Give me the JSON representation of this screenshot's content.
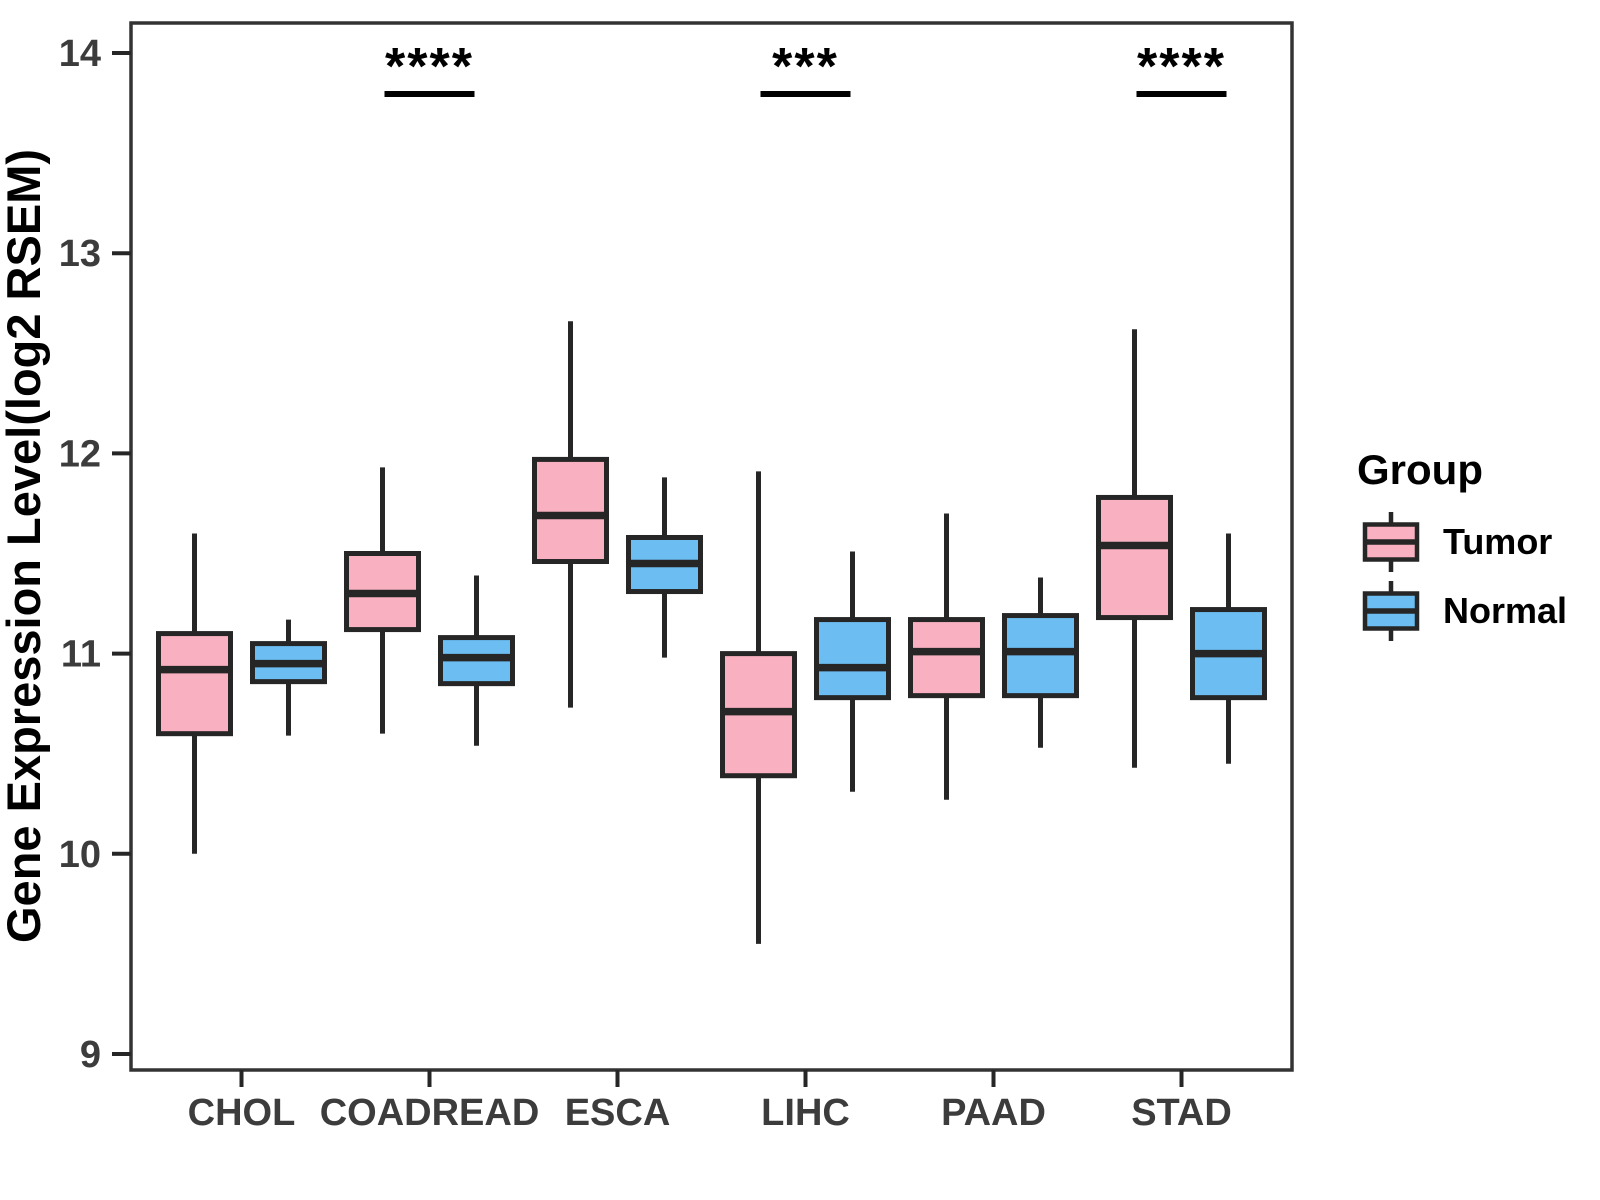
{
  "chart_data": {
    "type": "boxplot",
    "title": "",
    "xlabel": "",
    "ylabel": "Gene Expression Level(log2 RSEM)",
    "yticks": [
      9,
      10,
      11,
      12,
      13,
      14
    ],
    "ylim": [
      8.92,
      14.15
    ],
    "grid": false,
    "legend_position": "right",
    "categories": [
      "CHOL",
      "COADREAD",
      "ESCA",
      "LIHC",
      "PAAD",
      "STAD"
    ],
    "series": [
      {
        "name": "Tumor",
        "color": "#F9B1C1",
        "boxes": [
          {
            "min": 10.0,
            "q1": 10.6,
            "median": 10.92,
            "q3": 11.1,
            "max": 11.6
          },
          {
            "min": 10.6,
            "q1": 11.12,
            "median": 11.3,
            "q3": 11.5,
            "max": 11.93
          },
          {
            "min": 10.73,
            "q1": 11.46,
            "median": 11.69,
            "q3": 11.97,
            "max": 12.66
          },
          {
            "min": 9.55,
            "q1": 10.39,
            "median": 10.71,
            "q3": 11.0,
            "max": 11.91
          },
          {
            "min": 10.27,
            "q1": 10.79,
            "median": 11.01,
            "q3": 11.17,
            "max": 11.7
          },
          {
            "min": 10.43,
            "q1": 11.18,
            "median": 11.54,
            "q3": 11.78,
            "max": 12.62
          }
        ]
      },
      {
        "name": "Normal",
        "color": "#6BBDF2",
        "boxes": [
          {
            "min": 10.59,
            "q1": 10.86,
            "median": 10.95,
            "q3": 11.05,
            "max": 11.17
          },
          {
            "min": 10.54,
            "q1": 10.85,
            "median": 10.98,
            "q3": 11.08,
            "max": 11.39
          },
          {
            "min": 10.98,
            "q1": 11.31,
            "median": 11.45,
            "q3": 11.58,
            "max": 11.88
          },
          {
            "min": 10.31,
            "q1": 10.78,
            "median": 10.93,
            "q3": 11.17,
            "max": 11.51
          },
          {
            "min": 10.53,
            "q1": 10.79,
            "median": 11.01,
            "q3": 11.19,
            "max": 11.38
          },
          {
            "min": 10.45,
            "q1": 10.78,
            "median": 11.0,
            "q3": 11.22,
            "max": 11.6
          }
        ]
      }
    ],
    "significance": [
      {
        "category": "COADREAD",
        "label": "****"
      },
      {
        "category": "LIHC",
        "label": "***"
      },
      {
        "category": "STAD",
        "label": "****"
      }
    ],
    "legend": {
      "title": "Group"
    },
    "style": {
      "box_border_color": "#262626",
      "panel_border_color": "#333333",
      "axis_text_color": "#3C3C3C",
      "tick_color": "#262626"
    }
  }
}
